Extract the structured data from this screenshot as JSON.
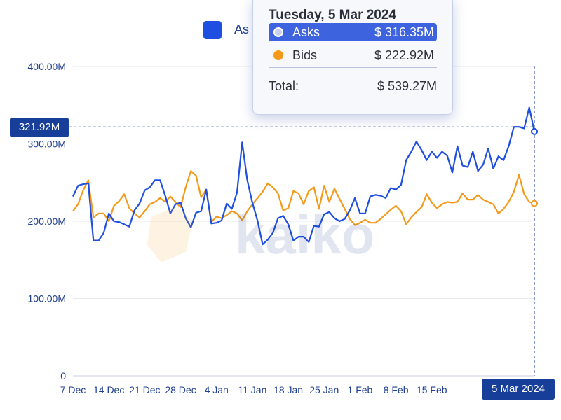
{
  "legend": {
    "label": "As",
    "color": "#1f4fe0"
  },
  "watermark": {
    "text": "kaiko"
  },
  "tooltip": {
    "date": "Tuesday, 5 Mar 2024",
    "rows": [
      {
        "name": "Asks",
        "value": "$ 316.35M",
        "color": "#1f4fe0"
      },
      {
        "name": "Bids",
        "value": "$ 222.92M",
        "color": "#f49a1a"
      }
    ],
    "total_label": "Total:",
    "total_value": "$ 539.27M"
  },
  "crosshair": {
    "y_label": "321.92M",
    "x_label": "5 Mar 2024"
  },
  "chart_data": {
    "type": "line",
    "x_ticks": [
      "7 Dec",
      "14 Dec",
      "21 Dec",
      "28 Dec",
      "4 Jan",
      "11 Jan",
      "18 Jan",
      "25 Jan",
      "1 Feb",
      "8 Feb",
      "15 Feb"
    ],
    "y_ticks": [
      "0",
      "100.00M",
      "200.00M",
      "300.00M",
      "400.00M"
    ],
    "ylim": [
      0,
      400
    ],
    "x_range": [
      "2023-12-07",
      "2024-03-05"
    ],
    "series": [
      {
        "name": "Asks",
        "color": "#1f4fe0",
        "values": [
          232,
          246,
          248,
          249,
          175,
          175,
          185,
          210,
          200,
          199,
          196,
          193,
          214,
          223,
          240,
          244,
          253,
          253,
          233,
          210,
          222,
          224,
          204,
          192,
          211,
          213,
          241,
          197,
          198,
          201,
          223,
          216,
          237,
          302,
          253,
          224,
          201,
          170,
          176,
          185,
          204,
          207,
          196,
          175,
          180,
          180,
          173,
          194,
          193,
          209,
          212,
          204,
          200,
          203,
          214,
          230,
          210,
          210,
          232,
          234,
          233,
          230,
          243,
          241,
          247,
          279,
          290,
          303,
          292,
          279,
          290,
          282,
          290,
          285,
          263,
          297,
          272,
          270,
          290,
          265,
          273,
          294,
          268,
          284,
          279,
          297,
          322,
          322,
          320,
          347,
          316
        ]
      },
      {
        "name": "Bids",
        "color": "#f49a1a",
        "values": [
          213,
          222,
          240,
          253,
          205,
          210,
          210,
          200,
          220,
          226,
          235,
          217,
          210,
          205,
          213,
          222,
          225,
          230,
          225,
          232,
          225,
          218,
          244,
          265,
          259,
          231,
          241,
          199,
          206,
          204,
          208,
          213,
          210,
          201,
          213,
          222,
          230,
          238,
          249,
          244,
          236,
          214,
          217,
          239,
          236,
          222,
          239,
          244,
          216,
          246,
          225,
          242,
          229,
          216,
          203,
          195,
          198,
          202,
          198,
          198,
          203,
          209,
          215,
          220,
          213,
          196,
          205,
          212,
          218,
          235,
          224,
          217,
          222,
          225,
          224,
          225,
          236,
          228,
          228,
          234,
          228,
          225,
          222,
          210,
          216,
          225,
          238,
          260,
          235,
          225,
          223
        ]
      }
    ]
  }
}
